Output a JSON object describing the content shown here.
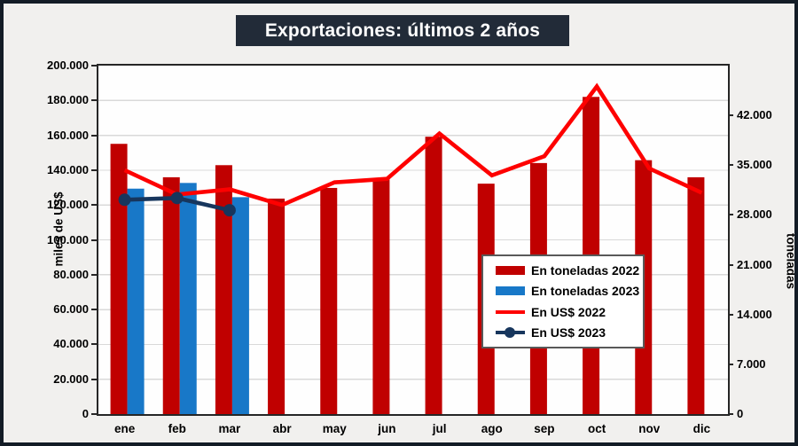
{
  "chart_data": {
    "type": "combo",
    "title": "Exportaciones: últimos 2 años",
    "categories": [
      "ene",
      "feb",
      "mar",
      "abr",
      "may",
      "jun",
      "jul",
      "ago",
      "sep",
      "oct",
      "nov",
      "dic"
    ],
    "left_axis": {
      "title": "miles de US$",
      "min": 0,
      "max": 200000,
      "step": 20000,
      "tick_labels": [
        "0",
        "20.000",
        "40.000",
        "60.000",
        "80.000",
        "100.000",
        "120.000",
        "140.000",
        "160.000",
        "180.000",
        "200.000"
      ]
    },
    "right_axis": {
      "title": "toneladas",
      "min": 0,
      "max": 49000,
      "step": 7000,
      "tick_labels": [
        "0",
        "7.000",
        "14.000",
        "21.000",
        "28.000",
        "35.000",
        "42.000"
      ]
    },
    "grid": true,
    "legend_position": "overlay-center-right",
    "series": [
      {
        "name": "En toneladas 2022",
        "type": "bar",
        "axis": "right",
        "color": "#c00000",
        "values": [
          38000,
          33300,
          35000,
          30300,
          31800,
          33000,
          39000,
          32400,
          35300,
          44600,
          35700,
          33300
        ]
      },
      {
        "name": "En toneladas 2023",
        "type": "bar",
        "axis": "right",
        "color": "#1878c8",
        "values": [
          31700,
          32500,
          30500,
          null,
          null,
          null,
          null,
          null,
          null,
          null,
          null,
          null
        ]
      },
      {
        "name": "En US$ 2022",
        "type": "line",
        "axis": "left",
        "color": "#fe0000",
        "marker": false,
        "values": [
          140000,
          126000,
          129000,
          120000,
          133000,
          135000,
          161000,
          137000,
          148000,
          188000,
          141000,
          127000
        ]
      },
      {
        "name": "En US$ 2023",
        "type": "line",
        "axis": "left",
        "color": "#17365d",
        "marker": true,
        "values": [
          123000,
          124000,
          117000,
          null,
          null,
          null,
          null,
          null,
          null,
          null,
          null,
          null
        ]
      }
    ]
  },
  "colors": {
    "background": "#f1f0ee",
    "outer_border": "#131c26",
    "title_bg": "#222b38",
    "title_text": "#ffffff",
    "plot_bg": "#fefefe",
    "plot_border": "#262626",
    "grid": "#d9d9d9",
    "legend_border": "#595959",
    "axis_text": "#000000"
  }
}
